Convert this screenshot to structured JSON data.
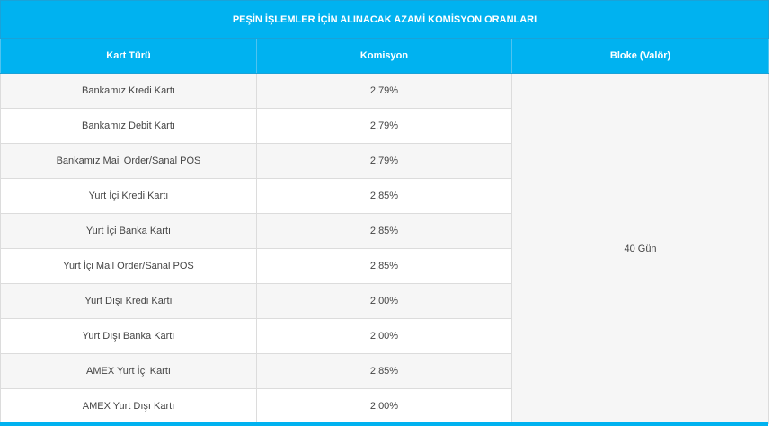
{
  "table": {
    "title": "PEŞİN İŞLEMLER İÇİN ALINACAK AZAMİ KOMİSYON ORANLARI",
    "columns": [
      "Kart Türü",
      "Komisyon",
      "Bloke (Valör)"
    ],
    "rows": [
      {
        "card_type": "Bankamız Kredi Kartı",
        "commission": "2,79%"
      },
      {
        "card_type": "Bankamız Debit Kartı",
        "commission": "2,79%"
      },
      {
        "card_type": "Bankamız Mail Order/Sanal POS",
        "commission": "2,79%"
      },
      {
        "card_type": "Yurt İçi Kredi Kartı",
        "commission": "2,85%"
      },
      {
        "card_type": "Yurt İçi Banka Kartı",
        "commission": "2,85%"
      },
      {
        "card_type": "Yurt İçi Mail Order/Sanal POS",
        "commission": "2,85%"
      },
      {
        "card_type": "Yurt Dışı Kredi Kartı",
        "commission": "2,00%"
      },
      {
        "card_type": "Yurt Dışı Banka Kartı",
        "commission": "2,00%"
      },
      {
        "card_type": "AMEX Yurt İçi Kartı",
        "commission": "2,85%"
      },
      {
        "card_type": "AMEX Yurt Dışı Kartı",
        "commission": "2,00%"
      }
    ],
    "bloke_value": "40 Gün"
  },
  "colors": {
    "header_bg": "#00b2f0",
    "header_text": "#ffffff",
    "row_alt_bg": "#f6f6f6",
    "cell_text": "#444444"
  }
}
